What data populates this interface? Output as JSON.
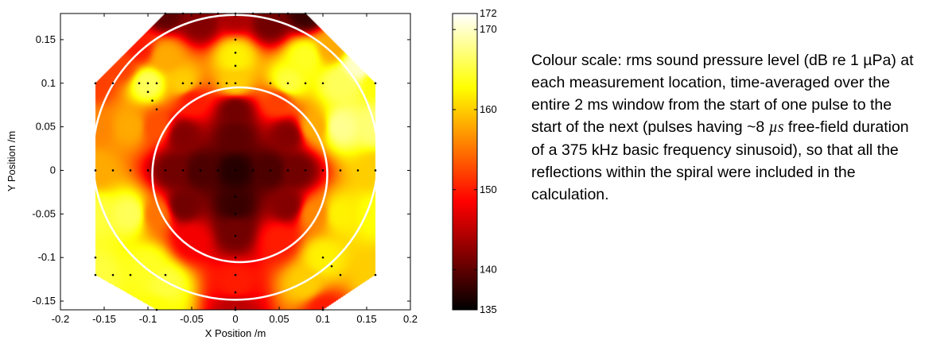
{
  "chart_data": {
    "type": "heatmap",
    "title": "",
    "xlabel": "X Position /m",
    "ylabel": "Y Position /m",
    "xlim": [
      -0.2,
      0.2
    ],
    "ylim": [
      -0.16,
      0.18
    ],
    "x_ticks": [
      -0.2,
      -0.15,
      -0.1,
      -0.05,
      0,
      0.05,
      0.1,
      0.15,
      0.2
    ],
    "x_tick_labels": [
      "-0.2",
      "-0.15",
      "-0.1",
      "-0.05",
      "0",
      "0.05",
      "0.1",
      "0.15",
      "0.2"
    ],
    "y_ticks": [
      -0.15,
      -0.1,
      -0.05,
      0,
      0.05,
      0.1,
      0.15
    ],
    "y_tick_labels": [
      "-0.15",
      "-0.1",
      "-0.05",
      "0",
      "0.05",
      "0.1",
      "0.15"
    ],
    "colorbar": {
      "range": [
        135,
        172
      ],
      "ticks": [
        135,
        140,
        150,
        160,
        170,
        172
      ],
      "tick_labels": [
        "135",
        "140",
        "150",
        "160",
        "170",
        "172"
      ],
      "colormap": "hot"
    },
    "circles": [
      {
        "name": "outer",
        "cx": 0,
        "cy": 0.015,
        "r": 0.163
      },
      {
        "name": "inner",
        "cx": 0.005,
        "cy": -0.005,
        "r": 0.1
      }
    ],
    "boundary": [
      [
        -0.08,
        0.18
      ],
      [
        0.08,
        0.18
      ],
      [
        0.16,
        0.1
      ],
      [
        0.16,
        -0.12
      ],
      [
        0.1,
        -0.16
      ],
      [
        -0.09,
        -0.16
      ],
      [
        -0.16,
        -0.12
      ],
      [
        -0.16,
        0.1
      ]
    ],
    "measurement_points": [
      [
        -0.08,
        0.18
      ],
      [
        -0.06,
        0.18
      ],
      [
        -0.04,
        0.18
      ],
      [
        -0.02,
        0.18
      ],
      [
        0,
        0.18
      ],
      [
        0.02,
        0.18
      ],
      [
        0.04,
        0.18
      ],
      [
        0.06,
        0.18
      ],
      [
        0.08,
        0.18
      ],
      [
        0,
        0.15
      ],
      [
        0,
        0.135
      ],
      [
        0,
        0.12
      ],
      [
        -0.16,
        0.1
      ],
      [
        -0.14,
        0.1
      ],
      [
        -0.11,
        0.1
      ],
      [
        -0.1,
        0.1
      ],
      [
        -0.09,
        0.1
      ],
      [
        -0.06,
        0.1
      ],
      [
        -0.05,
        0.1
      ],
      [
        -0.04,
        0.1
      ],
      [
        -0.03,
        0.1
      ],
      [
        -0.02,
        0.1
      ],
      [
        -0.01,
        0.1
      ],
      [
        0,
        0.1
      ],
      [
        0.04,
        0.1
      ],
      [
        0.06,
        0.1
      ],
      [
        0.08,
        0.1
      ],
      [
        0.1,
        0.1
      ],
      [
        0.16,
        0.1
      ],
      [
        -0.1,
        0.09
      ],
      [
        -0.095,
        0.08
      ],
      [
        -0.09,
        0.07
      ],
      [
        -0.16,
        0
      ],
      [
        -0.14,
        0
      ],
      [
        -0.12,
        0
      ],
      [
        -0.1,
        0
      ],
      [
        -0.08,
        0
      ],
      [
        -0.06,
        0
      ],
      [
        -0.04,
        0
      ],
      [
        -0.02,
        0
      ],
      [
        0,
        0
      ],
      [
        0.02,
        0
      ],
      [
        0.04,
        0
      ],
      [
        0.06,
        0
      ],
      [
        0.08,
        0
      ],
      [
        0.1,
        0
      ],
      [
        0.12,
        0
      ],
      [
        0.14,
        0
      ],
      [
        0.16,
        0
      ],
      [
        0,
        -0.03
      ],
      [
        0,
        -0.05
      ],
      [
        0,
        -0.075
      ],
      [
        0,
        -0.1
      ],
      [
        0,
        -0.12
      ],
      [
        0,
        -0.14
      ],
      [
        0,
        -0.16
      ],
      [
        0.1,
        -0.1
      ],
      [
        0.11,
        -0.11
      ],
      [
        0.12,
        -0.12
      ],
      [
        -0.16,
        -0.1
      ],
      [
        -0.16,
        -0.12
      ],
      [
        -0.14,
        -0.12
      ],
      [
        -0.12,
        -0.12
      ],
      [
        -0.08,
        -0.12
      ],
      [
        0.16,
        -0.12
      ],
      [
        -0.09,
        -0.16
      ],
      [
        0.1,
        -0.16
      ]
    ],
    "field_samples": [
      [
        -0.16,
        0.1,
        152
      ],
      [
        -0.1,
        0.1,
        166
      ],
      [
        -0.06,
        0.1,
        160
      ],
      [
        0,
        0.1,
        160
      ],
      [
        0.06,
        0.1,
        165
      ],
      [
        0.12,
        0.1,
        166
      ],
      [
        0.16,
        0.1,
        163
      ],
      [
        -0.08,
        0.18,
        140
      ],
      [
        0,
        0.18,
        144
      ],
      [
        0.08,
        0.18,
        138
      ],
      [
        -0.04,
        0.17,
        142
      ],
      [
        0.04,
        0.17,
        141
      ],
      [
        -0.16,
        0.05,
        156
      ],
      [
        0.16,
        0.05,
        167
      ],
      [
        -0.16,
        0,
        158
      ],
      [
        0.16,
        0,
        160
      ],
      [
        -0.16,
        -0.05,
        165
      ],
      [
        0.16,
        -0.05,
        163
      ],
      [
        -0.16,
        -0.12,
        165
      ],
      [
        0.16,
        -0.12,
        160
      ],
      [
        -0.09,
        -0.16,
        163
      ],
      [
        0.1,
        -0.16,
        150
      ],
      [
        0,
        -0.16,
        145
      ],
      [
        -0.12,
        0.05,
        158
      ],
      [
        0.12,
        0.05,
        168
      ],
      [
        -0.12,
        -0.05,
        166
      ],
      [
        0.12,
        -0.05,
        162
      ],
      [
        -0.08,
        0.13,
        158
      ],
      [
        0.08,
        0.13,
        164
      ],
      [
        -0.08,
        -0.13,
        165
      ],
      [
        0.08,
        -0.13,
        160
      ],
      [
        0,
        0.13,
        162
      ],
      [
        0,
        -0.13,
        150
      ],
      [
        -0.1,
        -0.11,
        164
      ],
      [
        0.1,
        -0.1,
        162
      ],
      [
        0,
        0,
        137
      ],
      [
        -0.04,
        0,
        139
      ],
      [
        0.04,
        0,
        139
      ],
      [
        0,
        0.04,
        140
      ],
      [
        0,
        -0.04,
        138
      ],
      [
        -0.06,
        0.04,
        142
      ],
      [
        0.06,
        0.04,
        142
      ],
      [
        -0.06,
        -0.04,
        141
      ],
      [
        0.06,
        -0.04,
        142
      ],
      [
        -0.07,
        0,
        141
      ],
      [
        0.07,
        0,
        141
      ],
      [
        0,
        0.07,
        141
      ],
      [
        0,
        -0.07,
        141
      ],
      [
        -0.05,
        0.08,
        150
      ],
      [
        0.05,
        0.08,
        152
      ],
      [
        -0.05,
        -0.08,
        148
      ],
      [
        0.05,
        -0.08,
        150
      ],
      [
        -0.09,
        0.05,
        153
      ],
      [
        0.09,
        0.05,
        158
      ],
      [
        -0.09,
        -0.05,
        155
      ],
      [
        0.09,
        -0.05,
        156
      ],
      [
        0.14,
        0.12,
        170
      ],
      [
        0.11,
        0.14,
        158
      ],
      [
        -0.11,
        0.14,
        150
      ],
      [
        -0.13,
        0.12,
        152
      ]
    ]
  },
  "caption": {
    "before_mu": "Colour scale: rms sound pressure level (dB re 1 µPa) at each measurement location, time-averaged over the entire 2 ms window from the start of one pulse to the start of the next (pulses having ~8 ",
    "mu_symbol": "µs",
    "after_mu": " free-field duration of a 375 kHz basic frequency sinusoid), so that all the reflections within the spiral were included in the calculation."
  }
}
